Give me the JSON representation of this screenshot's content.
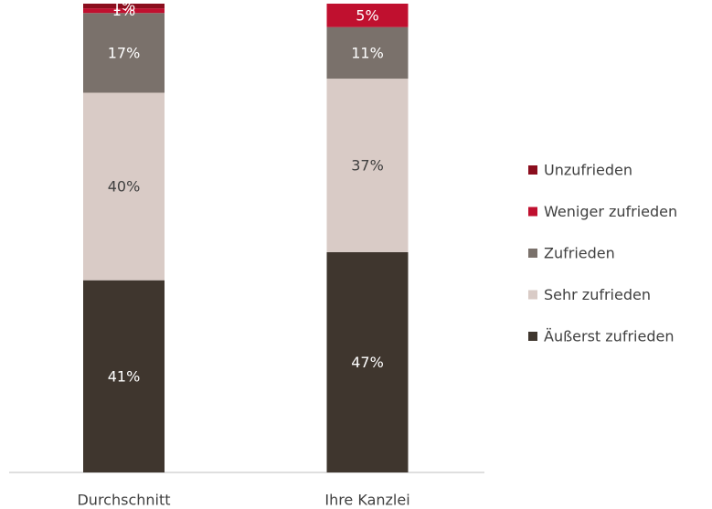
{
  "chart_data": {
    "type": "stacked_bar",
    "categories": [
      "Durchschnitt",
      "Ihre Kanzlei"
    ],
    "ylim": [
      0,
      100
    ],
    "series": [
      {
        "name": "Äußerst zufrieden",
        "color": "#3f362e",
        "values": [
          41,
          47
        ],
        "value_labels": [
          "41%",
          "47%"
        ]
      },
      {
        "name": "Sehr zufrieden",
        "color": "#d9cbc6",
        "values": [
          40,
          37
        ],
        "value_labels": [
          "40%",
          "37%"
        ]
      },
      {
        "name": "Zufrieden",
        "color": "#7a716b",
        "values": [
          17,
          11
        ],
        "value_labels": [
          "17%",
          "11%"
        ]
      },
      {
        "name": "Weniger zufrieden",
        "color": "#c0102f",
        "values": [
          1,
          5
        ],
        "value_labels": [
          "1%",
          "5%"
        ]
      },
      {
        "name": "Unzufrieden",
        "color": "#8b0e1e",
        "values": [
          1,
          0
        ],
        "value_labels": [
          "1%",
          null
        ]
      }
    ],
    "legend": "right"
  }
}
